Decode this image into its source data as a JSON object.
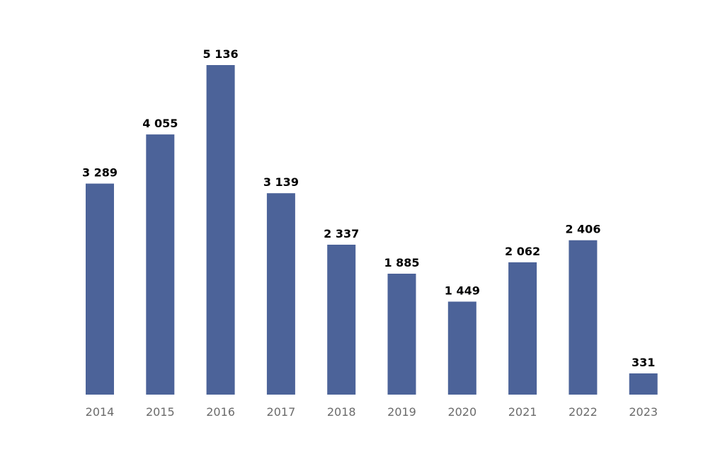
{
  "colors": {
    "bar": "#4c6399",
    "value_text": "#000000",
    "tick_text": "#6b6b6b",
    "background": "#ffffff"
  },
  "chart_data": {
    "type": "bar",
    "categories": [
      "2014",
      "2015",
      "2016",
      "2017",
      "2018",
      "2019",
      "2020",
      "2021",
      "2022",
      "2023"
    ],
    "values": [
      3289,
      4055,
      5136,
      3139,
      2337,
      1885,
      1449,
      2062,
      2406,
      331
    ],
    "value_labels": [
      "3 289",
      "4 055",
      "5 136",
      "3 139",
      "2 337",
      "1 885",
      "1 449",
      "2 062",
      "2 406",
      "331"
    ],
    "title": "",
    "xlabel": "",
    "ylabel": "",
    "ylim": [
      0,
      5136
    ],
    "grid": false,
    "legend": "none"
  }
}
